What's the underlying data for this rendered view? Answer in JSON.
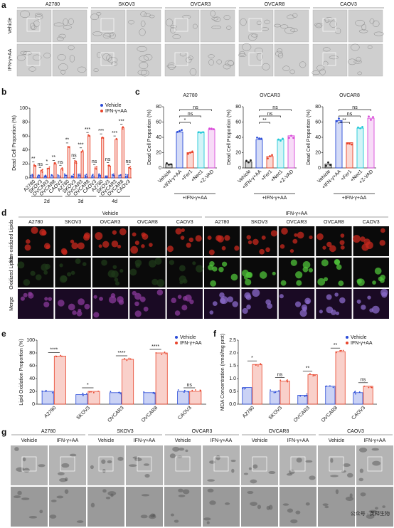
{
  "panels": [
    "a",
    "b",
    "c",
    "d",
    "e",
    "f",
    "g"
  ],
  "cell_lines": [
    "A2780",
    "SKOV3",
    "OVCAR3",
    "OVCAR8",
    "CAOV3"
  ],
  "conditions": [
    "Vehicle",
    "IFN-γ+AA"
  ],
  "d_rows": [
    "Non-oxidized Lipids",
    "Oxidized Lipids",
    "Merge"
  ],
  "b": {
    "type": "bar",
    "ylabel": "Dead Cell Proportion (%)",
    "categories": [
      "A2780",
      "SKOV3",
      "OVCAR3",
      "OVCAR8",
      "CAOV3",
      "A2780",
      "SKOV3",
      "OVCAR3",
      "OVCAR8",
      "CAOV3",
      "A2780",
      "SKOV3",
      "OVCAR3",
      "OVCAR8",
      "CAOV3"
    ],
    "groups": [
      "2d",
      "3d",
      "4d"
    ],
    "series": [
      {
        "name": "Vehicle",
        "color": "#2a4bd7",
        "values": [
          3,
          3,
          3,
          3,
          3,
          4,
          3,
          4,
          3,
          3,
          4,
          3,
          4,
          4,
          3
        ]
      },
      {
        "name": "IFN-γ+AA",
        "color": "#e8432a",
        "values": [
          18,
          10,
          14,
          20,
          13,
          45,
          23,
          38,
          60,
          14,
          58,
          17,
          55,
          72,
          14
        ]
      }
    ],
    "significance": [
      "**",
      "ns",
      "*",
      "**",
      "ns",
      "**",
      "ns",
      "***",
      "***",
      "ns",
      "***",
      "ns",
      "***",
      "***",
      "ns"
    ],
    "ylim": [
      0,
      100
    ],
    "yticks": [
      0,
      20,
      40,
      60,
      80,
      100
    ],
    "legend": "upper-right"
  },
  "c": [
    {
      "type": "bar",
      "title": "A2780",
      "ylabel": "Dead Cell Proportion (%)",
      "categories": [
        "Vehicle",
        "+IFN-γ+AA",
        "+Fer1",
        "+Nec1",
        "+Z-VAD"
      ],
      "colors": [
        "#222222",
        "#2a4bd7",
        "#e8432a",
        "#22c8d8",
        "#d94ad9"
      ],
      "values": [
        5,
        47,
        20,
        47,
        50
      ],
      "significance": [
        "*",
        "ns",
        "ns"
      ],
      "bracket_label": "+IFN-γ+AA",
      "ylim": [
        0,
        80
      ],
      "yticks": [
        0,
        20,
        40,
        60,
        80
      ]
    },
    {
      "type": "bar",
      "title": "OVCAR3",
      "ylabel": "Dead Cell Proportion (%)",
      "categories": [
        "Vehicle",
        "+IFN-γ+AA",
        "+Fer1",
        "+Nec1",
        "+Z-VAD"
      ],
      "colors": [
        "#222222",
        "#2a4bd7",
        "#e8432a",
        "#22c8d8",
        "#d94ad9"
      ],
      "values": [
        8,
        37,
        15,
        37,
        42
      ],
      "significance": [
        "**",
        "ns",
        "ns"
      ],
      "bracket_label": "+IFN-γ+AA",
      "ylim": [
        0,
        80
      ],
      "yticks": [
        0,
        20,
        40,
        60,
        80
      ]
    },
    {
      "type": "bar",
      "title": "OVCAR8",
      "ylabel": "Dead Cell Proportion (%)",
      "categories": [
        "Vehicle",
        "+IFN-γ+AA",
        "+Fer1",
        "+Nec1",
        "+Z-VAD"
      ],
      "colors": [
        "#222222",
        "#2a4bd7",
        "#e8432a",
        "#22c8d8",
        "#d94ad9"
      ],
      "values": [
        5,
        62,
        33,
        52,
        65
      ],
      "significance": [
        "**",
        "ns",
        "ns"
      ],
      "bracket_label": "+IFN-γ+AA",
      "ylim": [
        0,
        80
      ],
      "yticks": [
        0,
        20,
        40,
        60,
        80
      ]
    }
  ],
  "e": {
    "type": "bar",
    "ylabel": "Lipid Oxidation Proportion (%)",
    "categories": [
      "A2780",
      "SKOV3",
      "OVCAR3",
      "OVCAR8",
      "CAOV3"
    ],
    "series": [
      {
        "name": "Vehicle",
        "color": "#2a4bd7",
        "values": [
          20,
          15,
          18,
          18,
          20
        ]
      },
      {
        "name": "IFN-γ+AA",
        "color": "#e8432a",
        "values": [
          75,
          20,
          70,
          80,
          20
        ]
      }
    ],
    "significance": [
      "****",
      "*",
      "****",
      "****",
      "ns"
    ],
    "ylim": [
      0,
      100
    ],
    "yticks": [
      0,
      20,
      40,
      60,
      80,
      100
    ],
    "legend": "upper-right"
  },
  "f": {
    "type": "bar",
    "ylabel": "MDA Concentration (nmol/mg prot)",
    "categories": [
      "A2780",
      "SKOV3",
      "OVCAR3",
      "OVCAR8",
      "CAOV3"
    ],
    "series": [
      {
        "name": "Vehicle",
        "color": "#2a4bd7",
        "values": [
          0.65,
          0.5,
          0.35,
          0.7,
          0.45
        ]
      },
      {
        "name": "IFN-γ+AA",
        "color": "#e8432a",
        "values": [
          1.55,
          0.9,
          1.15,
          2.05,
          0.7
        ]
      }
    ],
    "significance": [
      "*",
      "ns",
      "**",
      "**",
      "ns"
    ],
    "ylim": [
      0,
      2.5
    ],
    "yticks": [
      {
        "value": 0,
        "label": "0.0"
      },
      0.5,
      {
        "value": 1,
        "label": "1.0"
      },
      1.5,
      {
        "value": 2,
        "label": "2.0"
      },
      2.5
    ],
    "legend": "upper-right"
  },
  "watermark": "公众号 · 英释生物"
}
